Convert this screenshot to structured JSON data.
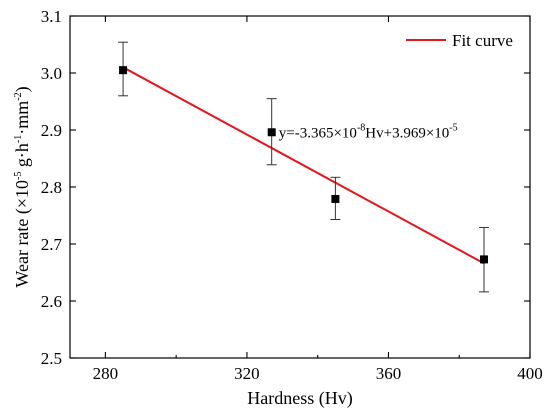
{
  "chart_data": {
    "type": "scatter",
    "xlabel": "Hardness (Hv)",
    "ylabel": {
      "main": "Wear rate (×10",
      "exp": "-5",
      "unit1": " g·h",
      "unit1_exp": "-1",
      "unit2": "·mm",
      "unit2_exp": "-2",
      "close": ")"
    },
    "xlim": [
      270,
      400
    ],
    "ylim": [
      2.5,
      3.1
    ],
    "xticks": [
      280,
      320,
      360,
      400
    ],
    "xtick_labels": [
      "280",
      "320",
      "360",
      "400"
    ],
    "yticks": [
      2.5,
      2.6,
      2.7,
      2.8,
      2.9,
      3.0,
      3.1
    ],
    "ytick_labels": [
      "2.5",
      "2.6",
      "2.7",
      "2.8",
      "2.9",
      "3.0",
      "3.1"
    ],
    "points": [
      {
        "x": 285,
        "y": 3.005,
        "err_low": 2.96,
        "err_high": 3.054
      },
      {
        "x": 327,
        "y": 2.896,
        "err_low": 2.839,
        "err_high": 2.955
      },
      {
        "x": 345,
        "y": 2.779,
        "err_low": 2.743,
        "err_high": 2.817
      },
      {
        "x": 387,
        "y": 2.673,
        "err_low": 2.616,
        "err_high": 2.729
      }
    ],
    "fit": {
      "x": [
        285,
        387
      ],
      "y": [
        3.01,
        2.666
      ],
      "color": "#e8141b",
      "legend": "Fit curve",
      "legend_position": "top-right"
    },
    "annotation": {
      "p1": "y=-3.365×10",
      "p1_exp": "-8",
      "p2": "Hv+3.969×10",
      "p2_exp": "-5",
      "at": {
        "x": 329,
        "y": 2.887
      }
    },
    "grid": false
  }
}
